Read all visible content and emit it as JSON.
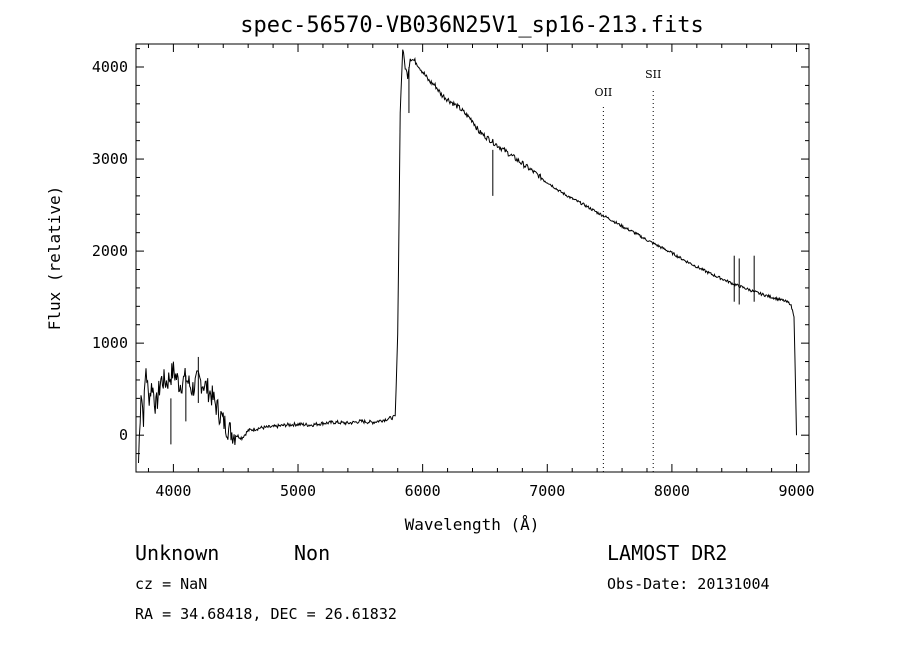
{
  "chart_data": {
    "type": "line",
    "title": "spec-56570-VB036N25V1_sp16-213.fits",
    "xlabel": "Wavelength (Å)",
    "ylabel": "Flux (relative)",
    "xlim": [
      3700,
      9100
    ],
    "ylim": [
      -400,
      4250
    ],
    "xticks": [
      4000,
      5000,
      6000,
      7000,
      8000,
      9000
    ],
    "yticks": [
      0,
      1000,
      2000,
      3000,
      4000
    ],
    "grid": false,
    "series": [
      {
        "x": [
          3720,
          3740,
          3760,
          3780,
          3800,
          3830,
          3860,
          3900,
          3950,
          4000,
          4050,
          4100,
          4150,
          4200,
          4250,
          4300,
          4350,
          4400,
          4450,
          4500,
          4550,
          4600,
          4700,
          4800,
          4900,
          5000,
          5100,
          5200,
          5300,
          5400,
          5500,
          5600,
          5700,
          5780,
          5800,
          5820,
          5840,
          5860,
          5880,
          5900,
          5950,
          6000,
          6050,
          6100,
          6150,
          6200,
          6250,
          6300,
          6350,
          6400,
          6450,
          6500,
          6550,
          6600,
          6650,
          6700,
          6750,
          6800,
          6850,
          6900,
          6950,
          7000,
          7100,
          7200,
          7300,
          7400,
          7500,
          7600,
          7700,
          7800,
          7900,
          8000,
          8100,
          8200,
          8300,
          8400,
          8500,
          8600,
          8700,
          8800,
          8900,
          8950,
          8980,
          9000
        ],
        "y": [
          -300,
          500,
          200,
          750,
          400,
          550,
          300,
          600,
          580,
          700,
          550,
          620,
          500,
          600,
          550,
          450,
          300,
          150,
          50,
          0,
          -30,
          50,
          80,
          90,
          110,
          120,
          110,
          130,
          140,
          130,
          150,
          140,
          170,
          200,
          1100,
          3500,
          4200,
          4000,
          3900,
          4100,
          4050,
          3950,
          3850,
          3800,
          3700,
          3650,
          3600,
          3550,
          3480,
          3420,
          3300,
          3250,
          3200,
          3150,
          3100,
          3050,
          3000,
          2950,
          2900,
          2850,
          2800,
          2750,
          2650,
          2570,
          2500,
          2420,
          2350,
          2270,
          2200,
          2120,
          2050,
          1980,
          1900,
          1830,
          1760,
          1700,
          1640,
          1590,
          1540,
          1500,
          1460,
          1430,
          1300,
          0
        ]
      }
    ],
    "absorption_features": [
      {
        "x": 3980,
        "y": -100
      },
      {
        "x": 4100,
        "y": 150
      },
      {
        "x": 4200,
        "y": 350
      },
      {
        "x": 5890,
        "y": 3500
      },
      {
        "x": 6563,
        "y": 2600
      },
      {
        "x": 8500,
        "y": 1450
      },
      {
        "x": 8540,
        "y": 1420
      },
      {
        "x": 8660,
        "y": 1450
      }
    ],
    "annotations": [
      {
        "label": "OII",
        "x": 7450
      },
      {
        "label": "SII",
        "x": 7850
      }
    ]
  },
  "info": {
    "class": "Unknown",
    "subclass": "Non",
    "survey": "LAMOST DR2",
    "cz": "cz = NaN",
    "obs_date": "Obs-Date: 20131004",
    "coords": "RA =  34.68418, DEC =  26.61832"
  }
}
